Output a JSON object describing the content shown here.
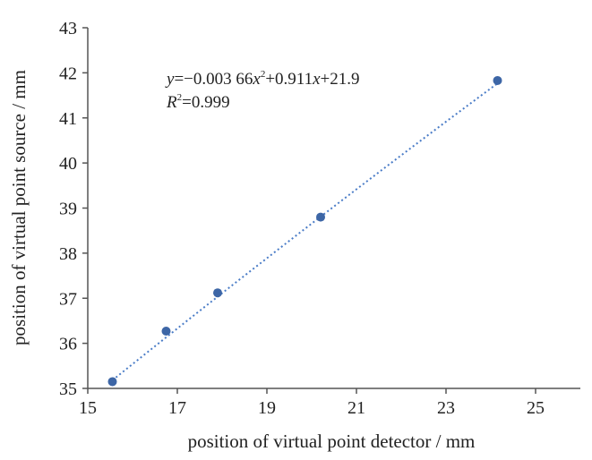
{
  "chart_data": {
    "type": "scatter",
    "title": "",
    "xlabel": "position of virtual point detector / mm",
    "ylabel": "position of virtual point source / mm",
    "xlim": [
      15,
      26
    ],
    "ylim": [
      35,
      43
    ],
    "x_ticks": [
      15,
      17,
      19,
      21,
      23,
      25
    ],
    "y_ticks": [
      35,
      36,
      37,
      38,
      39,
      40,
      41,
      42,
      43
    ],
    "grid": false,
    "series": [
      {
        "x": [
          15.55,
          16.75,
          17.9,
          20.2,
          24.15
        ],
        "y": [
          35.15,
          36.27,
          37.12,
          38.8,
          41.83
        ],
        "color": "#3d66a6"
      }
    ],
    "trendline": {
      "type": "polynomial-2",
      "coefficients": {
        "a": -0.00366,
        "b": 0.911,
        "c": 21.9
      },
      "x_range": [
        15.55,
        24.15
      ],
      "color": "#4a7cc7",
      "style": "dotted"
    },
    "annotation": {
      "equation": {
        "y_var": "y",
        "eq_part1": "=−0.003 66",
        "x_var1": "x",
        "sup1": "2",
        "eq_part2": "+0.911",
        "x_var2": "x",
        "eq_part3": "+21.9"
      },
      "r_squared": {
        "r_var": "R",
        "sup": "2",
        "value": "=0.999"
      }
    }
  }
}
